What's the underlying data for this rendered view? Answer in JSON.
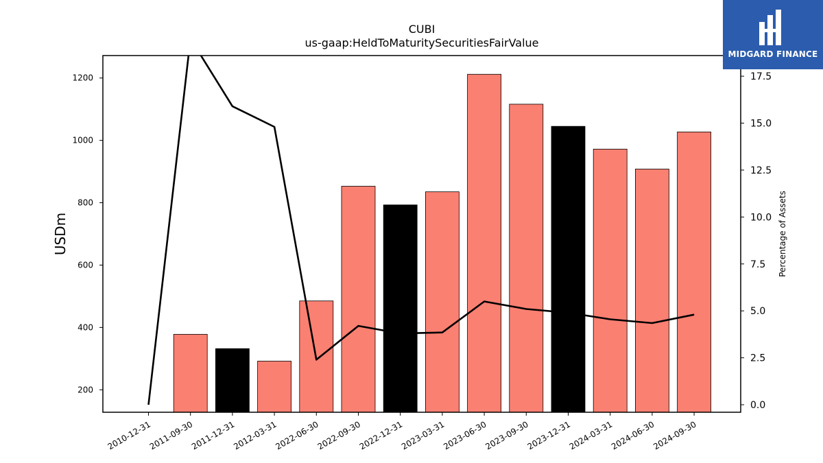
{
  "chart_data": {
    "type": "bar",
    "title": "CUBI",
    "subtitle": "us-gaap:HeldToMaturitySecuritiesFairValue",
    "ylabel": "USDm",
    "y2label": "Percentage of Assets",
    "categories": [
      "2010-12-31",
      "2011-09-30",
      "2011-12-31",
      "2012-03-31",
      "2022-06-30",
      "2022-09-30",
      "2022-12-31",
      "2023-03-31",
      "2023-06-30",
      "2023-09-30",
      "2023-12-31",
      "2024-03-31",
      "2024-06-30",
      "2024-09-30"
    ],
    "ylim": [
      128,
      1272
    ],
    "y2lim": [
      -0.4,
      18.6
    ],
    "yticks": [
      200,
      400,
      600,
      800,
      1000,
      1200
    ],
    "y2ticks": [
      "0.0",
      "2.5",
      "5.0",
      "7.5",
      "10.0",
      "12.5",
      "15.0",
      "17.5"
    ],
    "series": [
      {
        "type": "bar",
        "values": [
          0,
          378,
          332,
          292,
          485,
          853,
          793,
          835,
          1212,
          1116,
          1045,
          972,
          908,
          1027
        ]
      },
      {
        "type": "line",
        "axis": "right",
        "values": [
          0.0,
          19.5,
          15.9,
          14.8,
          2.4,
          4.2,
          3.8,
          3.85,
          5.5,
          5.1,
          4.9,
          4.55,
          4.35,
          4.8
        ]
      }
    ],
    "highlight_categories": [
      "2011-12-31",
      "2022-12-31",
      "2023-12-31"
    ],
    "grid": false
  },
  "colors": {
    "bar": "#fa8072",
    "bar_highlight": "#000000",
    "line": "#000000",
    "logo_bg": "#2b5cad"
  },
  "logo": {
    "text": "MIDGARD FINANCE",
    "icon": "midgard-logo-icon"
  }
}
